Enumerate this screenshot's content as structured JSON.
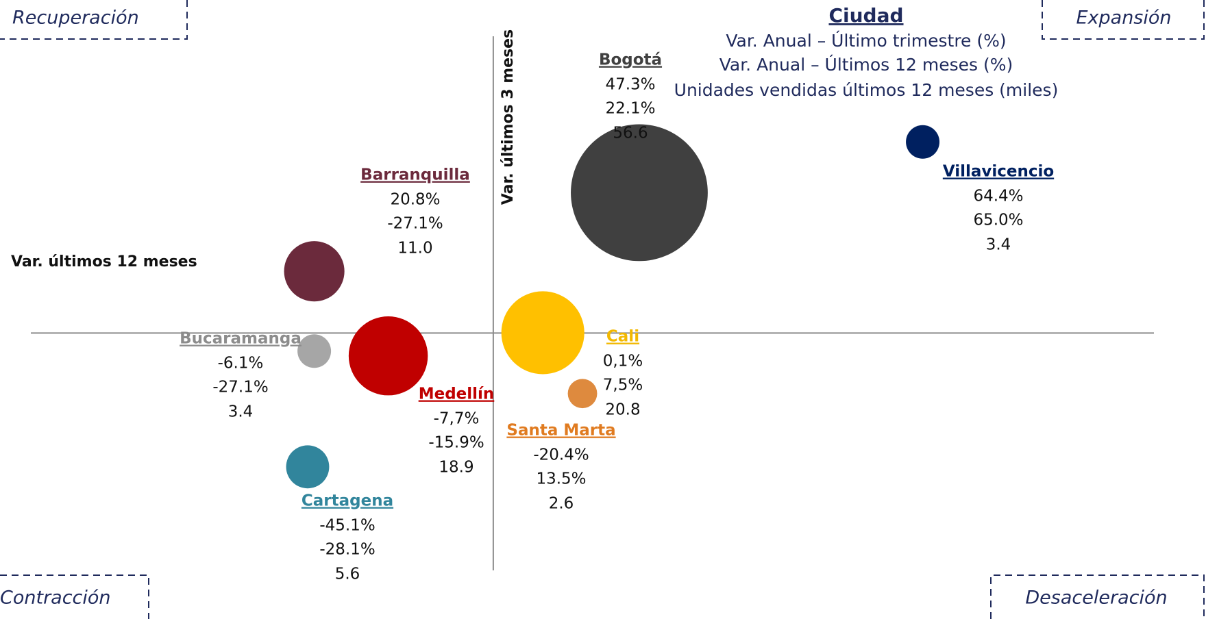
{
  "chart_data": {
    "type": "bubble",
    "title": "Ciudad",
    "legend_lines": [
      "Var. Anual – Último trimestre (%)",
      "Var. Anual – Últimos 12 meses (%)",
      "Unidades vendidas últimos 12 meses (miles)"
    ],
    "x_label": "Var. últimos 12 meses",
    "y_label": "Var. últimos 3 meses",
    "quadrants": {
      "top_left": "Recuperación",
      "top_right": "Expansión",
      "bottom_left": "Contracción",
      "bottom_right": "Desaceleración"
    },
    "xlim": [
      -70,
      100
    ],
    "ylim": [
      -80,
      100
    ],
    "series": [
      {
        "name": "Bogotá",
        "color": "#404040",
        "label_color": "#404040",
        "x": [
          22.1
        ],
        "values": [
          47.3
        ],
        "sizes": [
          56.6
        ],
        "value_labels": [
          "47.3%"
        ],
        "x_labels": [
          "22.1%"
        ]
      },
      {
        "name": "Villavicencio",
        "color": "#002060",
        "label_color": "#002060",
        "x": [
          65.0
        ],
        "values": [
          64.4
        ],
        "sizes": [
          3.4
        ],
        "value_labels": [
          "64.4%"
        ],
        "x_labels": [
          "65.0%"
        ]
      },
      {
        "name": "Barranquilla",
        "color": "#6B2A3C",
        "label_color": "#6B2A3C",
        "x": [
          -27.1
        ],
        "values": [
          20.8
        ],
        "sizes": [
          11.0
        ],
        "value_labels": [
          "20.8%"
        ],
        "x_labels": [
          "-27.1%"
        ],
        "size_labels": [
          "11.0"
        ]
      },
      {
        "name": "Bucaramanga",
        "color": "#A6A6A6",
        "label_color": "#8C8C8C",
        "x": [
          -27.1
        ],
        "values": [
          -6.1
        ],
        "sizes": [
          3.4
        ],
        "value_labels": [
          "-6.1%"
        ],
        "x_labels": [
          "-27.1%"
        ]
      },
      {
        "name": "Medellín",
        "color": "#C00000",
        "label_color": "#C00000",
        "x": [
          -15.9
        ],
        "values": [
          -7.7
        ],
        "sizes": [
          18.9
        ],
        "value_labels": [
          "-7,7%"
        ],
        "x_labels": [
          "-15.9%"
        ]
      },
      {
        "name": "Cali",
        "color": "#FFC000",
        "label_color": "#F2B800",
        "x": [
          7.5
        ],
        "values": [
          0.1
        ],
        "sizes": [
          20.8
        ],
        "value_labels": [
          "0,1%"
        ],
        "x_labels": [
          "7,5%"
        ]
      },
      {
        "name": "Santa Marta",
        "color": "#DE8A3E",
        "label_color": "#E07B20",
        "x": [
          13.5
        ],
        "values": [
          -20.4
        ],
        "sizes": [
          2.6
        ],
        "value_labels": [
          "-20.4%"
        ],
        "x_labels": [
          "13.5%"
        ]
      },
      {
        "name": "Cartagena",
        "color": "#31859C",
        "label_color": "#31859C",
        "x": [
          -28.1
        ],
        "values": [
          -45.1
        ],
        "sizes": [
          5.6
        ],
        "value_labels": [
          "-45.1%"
        ],
        "x_labels": [
          "-28.1%"
        ]
      }
    ]
  }
}
